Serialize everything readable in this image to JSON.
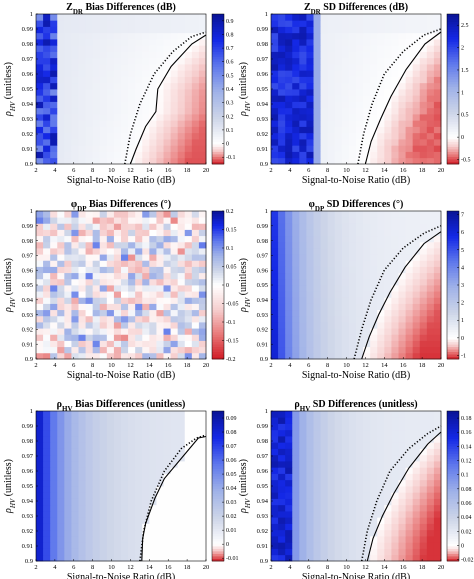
{
  "colors": {
    "positive_strong": "#0a22d4",
    "positive_mid": "#6f88e6",
    "light": "#c9d3e6",
    "neutral": "#ffffff",
    "negative": "#d11a22",
    "boundary_line": "#000000"
  },
  "chart_data": [
    {
      "type": "heatmap",
      "title": "Z_DR Bias Differences (dB)",
      "title_main": "Z",
      "title_sub": "DR",
      "title_rest": " Bias Differences (dB)",
      "xlabel": "Signal-to-Noise Ratio (dB)",
      "ylabel_main": "ρ",
      "ylabel_sub": "HV",
      "ylabel_rest": " (unitless)",
      "x_ticks": [
        "2",
        "4",
        "6",
        "8",
        "10",
        "12",
        "14",
        "16",
        "18",
        "20"
      ],
      "y_ticks": [
        "1",
        "0.99",
        "0.98",
        "0.97",
        "0.96",
        "0.95",
        "0.94",
        "0.93",
        "0.92",
        "0.91",
        "0.9"
      ],
      "xlim": [
        2,
        20
      ],
      "ylim": [
        0.9,
        1
      ],
      "colorbar_ticks": [
        "0.9",
        "0.8",
        "0.7",
        "0.6",
        "0.5",
        "0.4",
        "0.3",
        "0.2",
        "0.1",
        "0",
        "-0.1"
      ],
      "colorbar_range": [
        -0.15,
        0.95
      ],
      "pattern": "bias",
      "peak": 0.9,
      "neg_peak": -0.12,
      "dotted_curve": [
        [
          11.4,
          0.9
        ],
        [
          12.0,
          0.92
        ],
        [
          13.0,
          0.94
        ],
        [
          14.5,
          0.96
        ],
        [
          16.5,
          0.975
        ],
        [
          18.5,
          0.985
        ],
        [
          20,
          0.988
        ]
      ],
      "solid_curve": [
        [
          12.0,
          0.9
        ],
        [
          12.6,
          0.91
        ],
        [
          13.6,
          0.925
        ],
        [
          14.7,
          0.935
        ],
        [
          14.9,
          0.95
        ],
        [
          16.3,
          0.965
        ],
        [
          18.5,
          0.98
        ],
        [
          20,
          0.986
        ]
      ]
    },
    {
      "type": "heatmap",
      "title": "Z_DR SD Differences (dB)",
      "title_main": "Z",
      "title_sub": "DR",
      "title_rest": " SD Differences (dB)",
      "xlabel": "Signal-to-Noise Ratio (dB)",
      "ylabel_main": "ρ",
      "ylabel_sub": "HV",
      "ylabel_rest": " (unitless)",
      "x_ticks": [
        "2",
        "4",
        "6",
        "8",
        "10",
        "12",
        "14",
        "16",
        "18",
        "20"
      ],
      "y_ticks": [
        "1",
        "0.99",
        "0.98",
        "0.97",
        "0.96",
        "0.95",
        "0.94",
        "0.93",
        "0.92",
        "0.91",
        "0.9"
      ],
      "xlim": [
        2,
        20
      ],
      "ylim": [
        0.9,
        1
      ],
      "colorbar_ticks": [
        "2.5",
        "2",
        "1.5",
        "1",
        "0.5",
        "0",
        "-0.5"
      ],
      "colorbar_range": [
        -0.6,
        2.75
      ],
      "pattern": "sd",
      "peak": 2.6,
      "neg_peak": -0.5,
      "dotted_curve": [
        [
          11.2,
          0.9
        ],
        [
          11.8,
          0.92
        ],
        [
          12.7,
          0.94
        ],
        [
          14.0,
          0.96
        ],
        [
          16.0,
          0.975
        ],
        [
          18.2,
          0.986
        ],
        [
          20,
          0.99
        ]
      ],
      "solid_curve": [
        [
          12.0,
          0.9
        ],
        [
          12.6,
          0.915
        ],
        [
          13.6,
          0.93
        ],
        [
          14.7,
          0.945
        ],
        [
          16.3,
          0.963
        ],
        [
          18.3,
          0.98
        ],
        [
          20,
          0.988
        ]
      ]
    },
    {
      "type": "heatmap",
      "title": "φ_DP Bias Differences (°)",
      "title_main": "φ",
      "title_sub": "DP",
      "title_rest": " Bias Differences (°)",
      "xlabel": "Signal-to-Noise Ratio (dB)",
      "ylabel_main": "ρ",
      "ylabel_sub": "HV",
      "ylabel_rest": " (unitless)",
      "x_ticks": [
        "2",
        "4",
        "6",
        "8",
        "10",
        "12",
        "14",
        "16",
        "18",
        "20"
      ],
      "y_ticks": [
        "1",
        "0.99",
        "0.98",
        "0.97",
        "0.96",
        "0.95",
        "0.94",
        "0.93",
        "0.92",
        "0.91",
        "0.9"
      ],
      "xlim": [
        2,
        20
      ],
      "ylim": [
        0.9,
        1
      ],
      "colorbar_ticks": [
        "0.2",
        "0.15",
        "0.1",
        "0.05",
        "0",
        "-0.05",
        "-0.1",
        "-0.15",
        "-0.2"
      ],
      "colorbar_range": [
        -0.2,
        0.2
      ],
      "pattern": "noise",
      "peak": 0.09,
      "neg_peak": -0.09,
      "dotted_curve": [],
      "solid_curve": []
    },
    {
      "type": "heatmap",
      "title": "φ_DP SD Differences (°)",
      "title_main": "φ",
      "title_sub": "DP",
      "title_rest": " SD Differences (°)",
      "xlabel": "Signal-to-Noise Ratio (dB)",
      "ylabel_main": "ρ",
      "ylabel_sub": "HV",
      "ylabel_rest": " (unitless)",
      "x_ticks": [
        "2",
        "4",
        "6",
        "8",
        "10",
        "12",
        "14",
        "16",
        "18",
        "20"
      ],
      "y_ticks": [
        "1",
        "0.99",
        "0.98",
        "0.97",
        "0.96",
        "0.95",
        "0.94",
        "0.93",
        "0.92",
        "0.91",
        "0.9"
      ],
      "xlim": [
        2,
        20
      ],
      "ylim": [
        0.9,
        1
      ],
      "colorbar_ticks": [
        "7",
        "6",
        "5",
        "4",
        "3",
        "2",
        "1",
        "0",
        "-1"
      ],
      "colorbar_range": [
        -1.2,
        7.2
      ],
      "pattern": "smooth",
      "peak": 6.8,
      "neg_peak": -1.1,
      "dotted_curve": [
        [
          10.8,
          0.9
        ],
        [
          11.6,
          0.92
        ],
        [
          12.6,
          0.94
        ],
        [
          14.0,
          0.96
        ],
        [
          16.0,
          0.975
        ],
        [
          18.2,
          0.985
        ],
        [
          20,
          0.99
        ]
      ],
      "solid_curve": [
        [
          11.6,
          0.9
        ],
        [
          12.4,
          0.915
        ],
        [
          13.4,
          0.93
        ],
        [
          14.6,
          0.945
        ],
        [
          16.2,
          0.962
        ],
        [
          18.2,
          0.978
        ],
        [
          20,
          0.986
        ]
      ]
    },
    {
      "type": "heatmap",
      "title": "ρ_HV Bias Differences (unitless)",
      "title_main": "ρ",
      "title_sub": "HV",
      "title_rest": " Bias Differences (unitless)",
      "xlabel": "Signal-to-Noise Ratio (dB)",
      "ylabel_main": "ρ",
      "ylabel_sub": "HV",
      "ylabel_rest": " (unitless)",
      "x_ticks": [
        "2",
        "4",
        "6",
        "8",
        "10",
        "12",
        "14",
        "16",
        "18",
        "20"
      ],
      "y_ticks": [
        "1",
        "0.99",
        "0.98",
        "0.97",
        "0.96",
        "0.95",
        "0.94",
        "0.93",
        "0.92",
        "0.91",
        "0.9"
      ],
      "xlim": [
        2,
        20
      ],
      "ylim": [
        0.9,
        1
      ],
      "colorbar_ticks": [
        "0.09",
        "0.08",
        "0.07",
        "0.06",
        "0.05",
        "0.04",
        "0.03",
        "0.02",
        "0.01",
        "0",
        "-0.01"
      ],
      "colorbar_range": [
        -0.012,
        0.095
      ],
      "pattern": "rhobias",
      "peak": 0.09,
      "neg_peak": 0,
      "dotted_curve": [
        [
          13.0,
          0.9
        ],
        [
          13.4,
          0.92
        ],
        [
          14.2,
          0.94
        ],
        [
          15.6,
          0.96
        ],
        [
          17.4,
          0.975
        ],
        [
          19.0,
          0.982
        ],
        [
          20,
          0.984
        ]
      ],
      "solid_curve": [
        [
          13.2,
          0.9
        ],
        [
          13.3,
          0.915
        ],
        [
          13.6,
          0.925
        ],
        [
          14.6,
          0.942
        ],
        [
          15.6,
          0.955
        ],
        [
          17.6,
          0.97
        ],
        [
          19.2,
          0.982
        ],
        [
          20,
          0.983
        ]
      ]
    },
    {
      "type": "heatmap",
      "title": "ρ_HV SD Differences (unitless)",
      "title_main": "ρ",
      "title_sub": "HV",
      "title_rest": " SD Differences (unitless)",
      "xlabel": "Signal-to-Noise Ratio (dB)",
      "ylabel_main": "ρ",
      "ylabel_sub": "HV",
      "ylabel_rest": " (unitless)",
      "x_ticks": [
        "2",
        "4",
        "6",
        "8",
        "10",
        "12",
        "14",
        "16",
        "18",
        "20"
      ],
      "y_ticks": [
        "1",
        "0.99",
        "0.98",
        "0.97",
        "0.96",
        "0.95",
        "0.94",
        "0.93",
        "0.92",
        "0.91",
        "0.9"
      ],
      "xlim": [
        2,
        20
      ],
      "ylim": [
        0.9,
        1
      ],
      "colorbar_ticks": [
        "0.18",
        "0.16",
        "0.14",
        "0.12",
        "0.1",
        "0.08",
        "0.06",
        "0.04",
        "0.02",
        "0",
        "-0.02"
      ],
      "colorbar_range": [
        -0.022,
        0.19
      ],
      "pattern": "rhosd",
      "peak": 0.18,
      "neg_peak": -0.02,
      "dotted_curve": [
        [
          11.6,
          0.9
        ],
        [
          12.2,
          0.92
        ],
        [
          13.2,
          0.94
        ],
        [
          14.6,
          0.96
        ],
        [
          16.6,
          0.975
        ],
        [
          18.6,
          0.985
        ],
        [
          20,
          0.99
        ]
      ],
      "solid_curve": [
        [
          12.2,
          0.9
        ],
        [
          12.8,
          0.915
        ],
        [
          13.8,
          0.93
        ],
        [
          15.0,
          0.945
        ],
        [
          16.6,
          0.962
        ],
        [
          18.6,
          0.978
        ],
        [
          20,
          0.986
        ]
      ]
    }
  ]
}
